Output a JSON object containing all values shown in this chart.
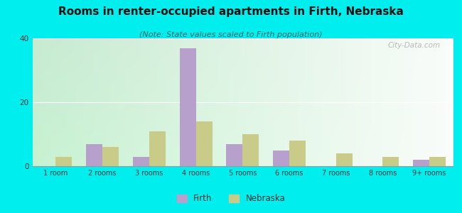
{
  "title": "Rooms in renter-occupied apartments in Firth, Nebraska",
  "subtitle": "(Note: State values scaled to Firth population)",
  "categories": [
    "1 room",
    "2 rooms",
    "3 rooms",
    "4 rooms",
    "5 rooms",
    "6 rooms",
    "7 rooms",
    "8 rooms",
    "9+ rooms"
  ],
  "firth_values": [
    0,
    7,
    3,
    37,
    7,
    5,
    0,
    0,
    2
  ],
  "nebraska_values": [
    3,
    6,
    11,
    14,
    10,
    8,
    4,
    3,
    3
  ],
  "firth_color": "#b8a0cc",
  "nebraska_color": "#c8cc88",
  "background_color": "#00eeee",
  "ylim": [
    0,
    40
  ],
  "yticks": [
    0,
    20,
    40
  ],
  "bar_width": 0.35,
  "title_fontsize": 11,
  "subtitle_fontsize": 8,
  "watermark": "City-Data.com"
}
